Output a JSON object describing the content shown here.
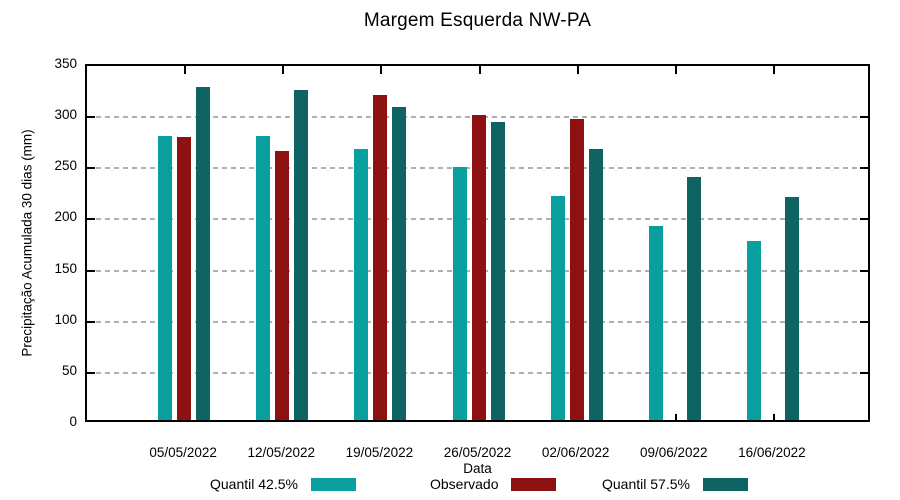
{
  "chart_data": {
    "type": "bar",
    "title": "Margem Esquerda NW-PA",
    "xlabel": "Data",
    "ylabel": "Precipitação Acumulada 30 dias (mm)",
    "ylim": [
      0,
      350
    ],
    "yticks": [
      0,
      50,
      100,
      150,
      200,
      250,
      300,
      350
    ],
    "grid": "horizontal-dashed",
    "legend_position": "bottom",
    "categories": [
      "05/05/2022",
      "12/05/2022",
      "19/05/2022",
      "26/05/2022",
      "02/06/2022",
      "09/06/2022",
      "16/06/2022"
    ],
    "series": [
      {
        "name": "Quantil 42.5%",
        "color": "#0a9f9f",
        "values": [
          280,
          280,
          267,
          249,
          221,
          192,
          177
        ]
      },
      {
        "name": "Observado",
        "color": "#8e1111",
        "values": [
          279,
          265,
          320,
          300,
          296,
          null,
          null
        ]
      },
      {
        "name": "Quantil 57.5%",
        "color": "#0e6363",
        "values": [
          328,
          325,
          308,
          293,
          267,
          240,
          220
        ]
      }
    ],
    "colors": {
      "background": "#ffffff",
      "axis": "#000000",
      "grid": "#b0b0b0",
      "text": "#000000"
    }
  }
}
